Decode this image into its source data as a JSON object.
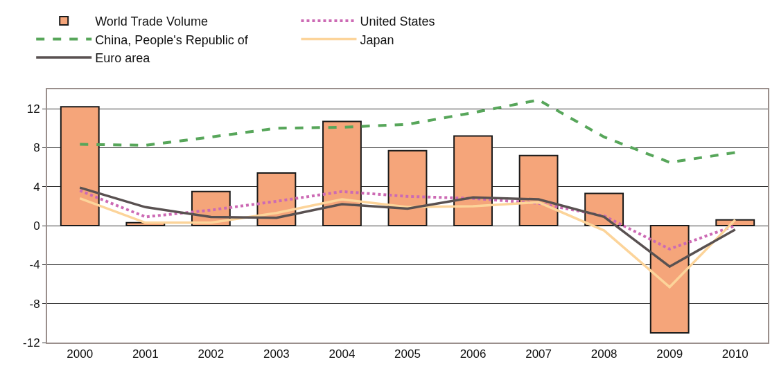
{
  "chart_data": {
    "type": "bar",
    "categories": [
      "2000",
      "2001",
      "2002",
      "2003",
      "2004",
      "2005",
      "2006",
      "2007",
      "2008",
      "2009",
      "2010"
    ],
    "series": [
      {
        "name": "World Trade Volume",
        "color": "#f5a57a",
        "values": [
          12.2,
          0.3,
          3.5,
          5.4,
          10.7,
          7.7,
          9.2,
          7.2,
          3.3,
          -11.0,
          0.6
        ]
      },
      {
        "name": "United States",
        "type": "line",
        "line_style": "dotted",
        "color": "#cc6ab4",
        "values": [
          3.6,
          0.9,
          1.6,
          2.5,
          3.5,
          3.0,
          2.8,
          2.3,
          1.0,
          -2.4,
          0.0
        ]
      },
      {
        "name": "China, People's Republic of",
        "type": "line",
        "line_style": "dashed",
        "color": "#57a65a",
        "values": [
          8.35,
          8.25,
          9.1,
          10.0,
          10.1,
          10.4,
          11.6,
          12.9,
          9.1,
          6.5,
          7.5
        ]
      },
      {
        "name": "Japan",
        "type": "line",
        "line_style": "solid",
        "color": "#fcd49a",
        "values": [
          2.8,
          0.3,
          0.3,
          1.3,
          2.7,
          1.9,
          2.0,
          2.4,
          -0.5,
          -6.3,
          0.6
        ]
      },
      {
        "name": "Euro area",
        "type": "line",
        "line_style": "solid",
        "color": "#595151",
        "values": [
          3.9,
          1.9,
          0.9,
          0.8,
          2.2,
          1.75,
          2.9,
          2.7,
          0.9,
          -4.2,
          -0.4
        ]
      }
    ],
    "ylim": [
      -12,
      14
    ],
    "yticks": [
      -12,
      -8,
      -4,
      0,
      4,
      8,
      12
    ],
    "grid": "y",
    "legend": "top",
    "marker": "none"
  }
}
